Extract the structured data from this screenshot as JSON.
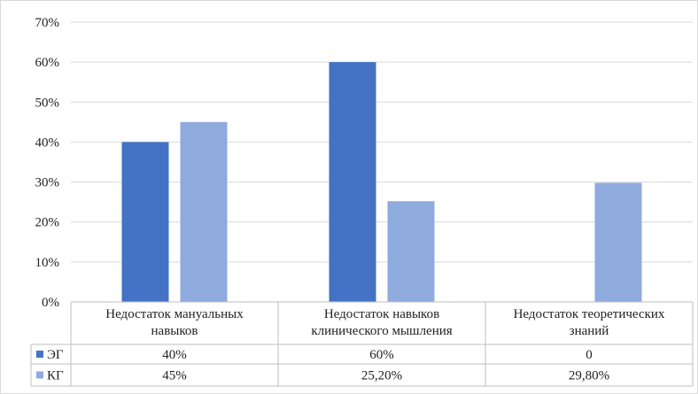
{
  "chart_data": {
    "type": "bar",
    "title": "",
    "xlabel": "",
    "ylabel": "",
    "ylim": [
      0,
      70
    ],
    "y_ticks": [
      "0%",
      "10%",
      "20%",
      "30%",
      "40%",
      "50%",
      "60%",
      "70%"
    ],
    "grid": true,
    "legend": "data-table-left",
    "categories": [
      [
        "Недостаток мануальных",
        "навыков"
      ],
      [
        "Недостаток навыков",
        "клинического мышления"
      ],
      [
        "Недостаток теоретических",
        "знаний"
      ]
    ],
    "series": [
      {
        "name": "ЭГ",
        "color": "#4472C4",
        "values": [
          40,
          60,
          0
        ],
        "table_labels": [
          "40%",
          "60%",
          "0"
        ]
      },
      {
        "name": "КГ",
        "color": "#8FAADC",
        "values": [
          45,
          25.2,
          29.8
        ],
        "table_labels": [
          "45%",
          "25,20%",
          "29,80%"
        ]
      }
    ]
  }
}
